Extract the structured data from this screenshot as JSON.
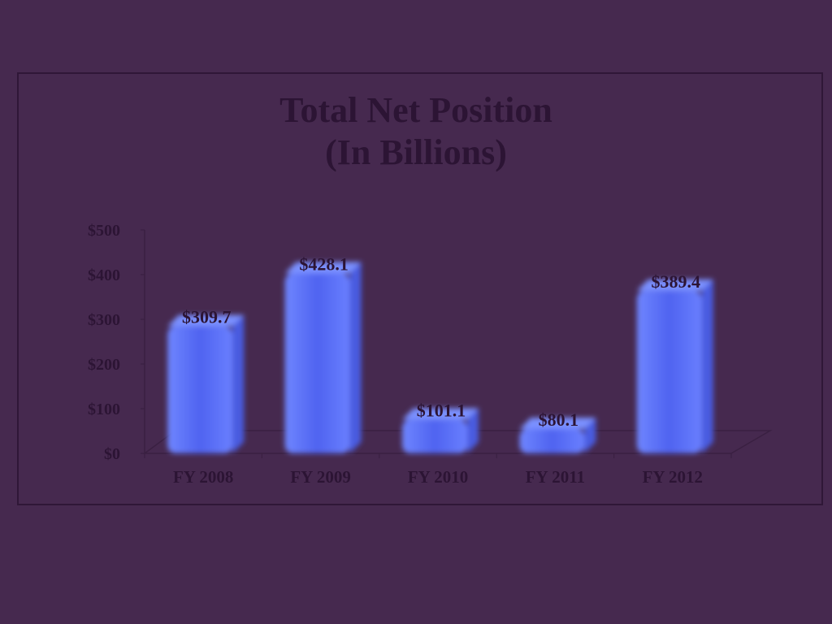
{
  "chart_data": {
    "type": "bar",
    "title_lines": [
      "Total Net Position",
      "(In Billions)"
    ],
    "categories": [
      "FY 2008",
      "FY 2009",
      "FY 2010",
      "FY 2011",
      "FY 2012"
    ],
    "values": [
      309.7,
      428.1,
      101.1,
      80.1,
      389.4
    ],
    "data_labels": [
      "$309.7",
      "$428.1",
      "$101.1",
      "$80.1",
      "$389.4"
    ],
    "y_ticks": [
      0,
      100,
      200,
      300,
      400,
      500
    ],
    "y_tick_labels": [
      "$0",
      "$100",
      "$200",
      "$300",
      "$400",
      "$500"
    ],
    "ylim": [
      0,
      500
    ],
    "xlabel": "",
    "ylabel": "",
    "grid": false,
    "legend": "none",
    "bar_color": "#5468ff",
    "background_color": "#46294f",
    "text_color": "#2c1434"
  }
}
